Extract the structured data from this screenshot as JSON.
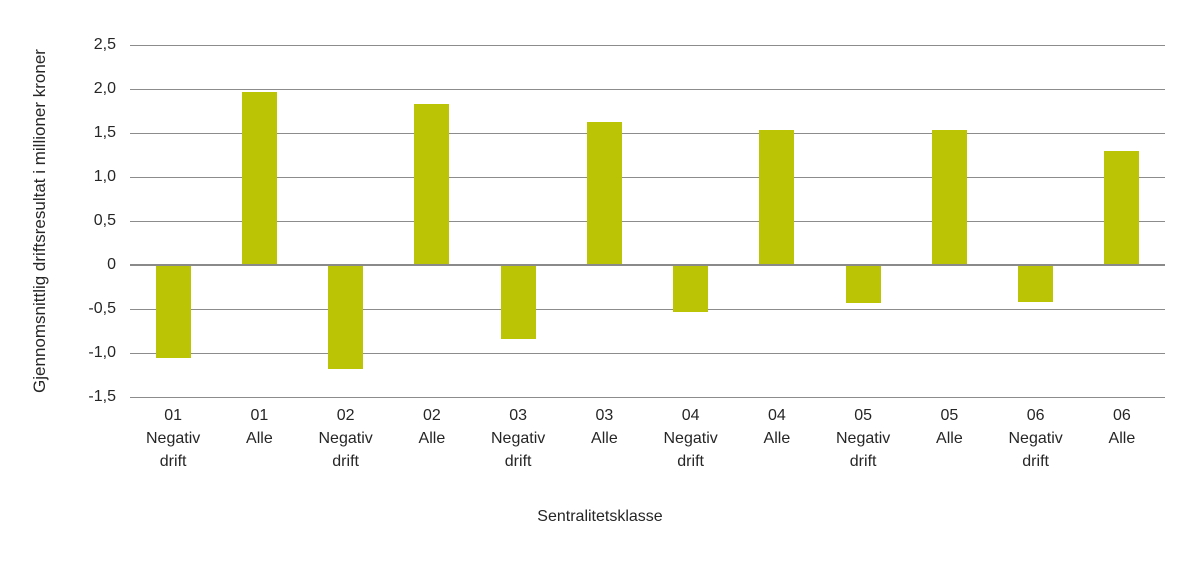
{
  "chart_data": {
    "type": "bar",
    "title": "",
    "xlabel": "Sentralitetsklasse",
    "ylabel": "Gjennomsnittlig driftsresultat i millioner kroner",
    "ylim": [
      -1.5,
      2.5
    ],
    "grid": true,
    "legend_position": "none",
    "bar_color": "#bbc506",
    "grid_color": "#8c8c8c",
    "zero_line_color": "#8a8a8a",
    "text_color": "#262626",
    "yticks": [
      {
        "label": "2,5",
        "value": 2.5
      },
      {
        "label": "2,0",
        "value": 2.0
      },
      {
        "label": "1,5",
        "value": 1.5
      },
      {
        "label": "1,0",
        "value": 1.0
      },
      {
        "label": "0,5",
        "value": 0.5
      },
      {
        "label": "0",
        "value": 0
      },
      {
        "label": "-0,5",
        "value": -0.5
      },
      {
        "label": "-1,0",
        "value": -1.0
      },
      {
        "label": "-1,5",
        "value": -1.5
      }
    ],
    "categories": [
      "01 Negativ drift",
      "01 Alle",
      "02 Negativ drift",
      "02 Alle",
      "03 Negativ drift",
      "03 Alle",
      "04 Negativ drift",
      "04 Alle",
      "05 Negativ drift",
      "05 Alle",
      "06 Negativ drift",
      "06 Alle"
    ],
    "values": [
      -1.06,
      1.97,
      -1.18,
      1.83,
      -0.84,
      1.62,
      -0.53,
      1.53,
      -0.43,
      1.53,
      -0.42,
      1.29
    ]
  }
}
